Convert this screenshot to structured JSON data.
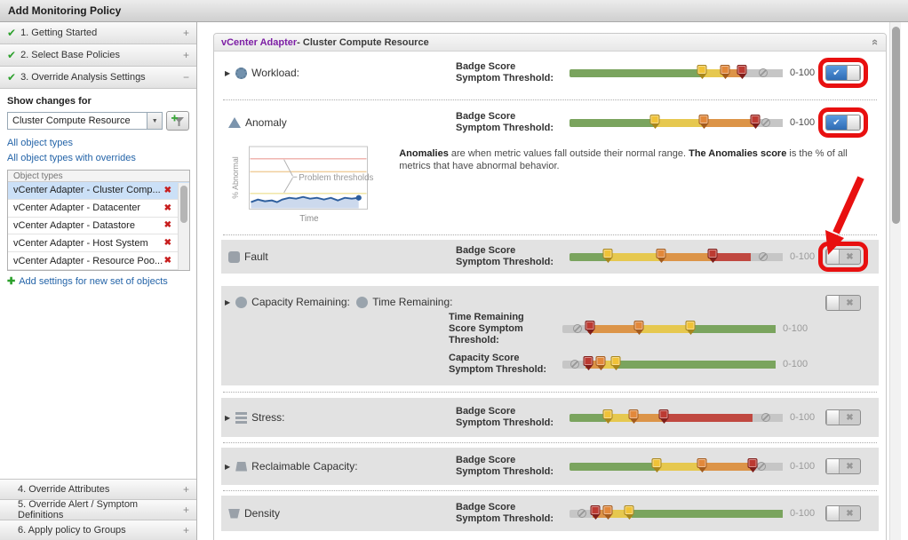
{
  "window": {
    "title": "Add Monitoring Policy"
  },
  "glyphs": {
    "check": "✔",
    "x": "✖",
    "delete_x": "✖",
    "plus": "+",
    "minus": "−",
    "expander": "▶",
    "dropdown_arrow": "▼",
    "add_plus": "✚",
    "collapse": "«"
  },
  "colors": {
    "accent_blue": "#3f7fc6",
    "link_blue": "#2464a8",
    "title_purple": "#7d1fa5",
    "annotation_red": "#e81010",
    "selected_row": "#cbe0f7",
    "disabled_band": "#e2e2e2",
    "green": "#7aa45e",
    "yellow": "#e6c84f",
    "orange": "#dc9448",
    "red": "#c04840",
    "gray": "#c6c6c6",
    "yellow_marker": "#f0c237",
    "yellow_marker_border": "#a8861c",
    "orange_marker": "#e2883b",
    "orange_marker_border": "#a35b1d",
    "red_marker": "#bc3a32",
    "red_marker_border": "#7e1d1a"
  },
  "sidebar": {
    "steps_top": [
      {
        "label": "1. Getting Started",
        "toggle": "+"
      },
      {
        "label": "2. Select Base Policies",
        "toggle": "+"
      },
      {
        "label": "3. Override Analysis Settings",
        "toggle": "−"
      }
    ],
    "show_changes_for_label": "Show changes for",
    "object_type_dropdown": {
      "value": "Cluster Compute Resource"
    },
    "links": {
      "all_object_types": "All object types",
      "all_with_overrides": "All object types with overrides"
    },
    "object_types_table": {
      "header": "Object types",
      "rows": [
        {
          "label": "vCenter Adapter - Cluster Comp...",
          "selected": true
        },
        {
          "label": "vCenter Adapter - Datacenter",
          "selected": false
        },
        {
          "label": "vCenter Adapter - Datastore",
          "selected": false
        },
        {
          "label": "vCenter Adapter - Host System",
          "selected": false
        },
        {
          "label": "vCenter Adapter - Resource Poo...",
          "selected": false
        }
      ]
    },
    "add_settings_link": "Add settings for new set of objects",
    "steps_bottom": [
      {
        "label": "4. Override Attributes",
        "toggle": "+"
      },
      {
        "label": "5. Override Alert / Symptom Definitions",
        "toggle": "+"
      },
      {
        "label": "6. Apply policy to Groups",
        "toggle": "+"
      }
    ]
  },
  "main": {
    "panel_title": {
      "adapter": "vCenter Adapter",
      "rest": " - Cluster Compute Resource"
    },
    "range_label": "0-100",
    "labels": {
      "badge_score": "Badge Score Symptom Threshold:",
      "time_remaining_score": "Time Remaining Score Symptom Threshold:",
      "capacity_score": "Capacity Score Symptom Threshold:"
    },
    "rows": {
      "workload": {
        "name": "Workload:"
      },
      "anomaly": {
        "name": "Anomaly"
      },
      "fault": {
        "name": "Fault"
      },
      "capacity_remaining": {
        "name": "Capacity Remaining:"
      },
      "time_remaining": {
        "name": "Time Remaining:"
      },
      "stress": {
        "name": "Stress:"
      },
      "reclaimable": {
        "name": "Reclaimable Capacity:"
      },
      "density": {
        "name": "Density"
      }
    },
    "anomaly_info": {
      "ylabel": "% Abnormal",
      "xlabel": "Time",
      "annotation": "Problem thresholds",
      "text_bold_1": "Anomalies",
      "text_1": " are when metric values fall outside their normal range. ",
      "text_bold_2": "The Anomalies score",
      "text_2": " is the % of all metrics that have abnormal behavior."
    }
  },
  "toggles": {
    "workload": "on",
    "anomaly": "on",
    "fault": "off",
    "capacity": "off",
    "stress": "off",
    "reclaimable": "off",
    "density": "off"
  },
  "sliders": {
    "workload": {
      "segments": [
        {
          "color": "green",
          "to": 62
        },
        {
          "color": "yellow",
          "to": 73
        },
        {
          "color": "orange",
          "to": 81
        },
        {
          "color": "gray",
          "to": 100
        }
      ],
      "markers": [
        {
          "color": "yellow",
          "pos": 62
        },
        {
          "color": "orange",
          "pos": 73
        },
        {
          "color": "red",
          "pos": 81
        }
      ],
      "disabled_at": 91
    },
    "anomaly": {
      "segments": [
        {
          "color": "green",
          "to": 40
        },
        {
          "color": "yellow",
          "to": 63
        },
        {
          "color": "orange",
          "to": 87
        },
        {
          "color": "gray",
          "to": 100
        }
      ],
      "markers": [
        {
          "color": "yellow",
          "pos": 40
        },
        {
          "color": "orange",
          "pos": 63
        },
        {
          "color": "red",
          "pos": 87
        }
      ],
      "disabled_at": 92
    },
    "fault": {
      "segments": [
        {
          "color": "green",
          "to": 18
        },
        {
          "color": "yellow",
          "to": 43
        },
        {
          "color": "orange",
          "to": 67
        },
        {
          "color": "red",
          "to": 85
        },
        {
          "color": "gray",
          "to": 100
        }
      ],
      "markers": [
        {
          "color": "yellow",
          "pos": 18
        },
        {
          "color": "orange",
          "pos": 43
        },
        {
          "color": "red",
          "pos": 67
        }
      ],
      "disabled_at": 91
    },
    "time_remaining": {
      "segments": [
        {
          "color": "gray",
          "to": 12
        },
        {
          "color": "orange",
          "to": 36
        },
        {
          "color": "yellow",
          "to": 60
        },
        {
          "color": "green",
          "to": 100
        }
      ],
      "markers": [
        {
          "color": "red",
          "pos": 13
        },
        {
          "color": "orange",
          "pos": 36
        },
        {
          "color": "yellow",
          "pos": 60
        }
      ],
      "disabled_at": 7
    },
    "capacity_score": {
      "segments": [
        {
          "color": "gray",
          "to": 11
        },
        {
          "color": "orange",
          "to": 19
        },
        {
          "color": "yellow",
          "to": 26
        },
        {
          "color": "green",
          "to": 100
        }
      ],
      "markers": [
        {
          "color": "red",
          "pos": 12
        },
        {
          "color": "orange",
          "pos": 18
        },
        {
          "color": "yellow",
          "pos": 25
        }
      ],
      "disabled_at": 6
    },
    "stress": {
      "segments": [
        {
          "color": "green",
          "to": 17
        },
        {
          "color": "yellow",
          "to": 30
        },
        {
          "color": "orange",
          "to": 44
        },
        {
          "color": "red",
          "to": 86
        },
        {
          "color": "gray",
          "to": 100
        }
      ],
      "markers": [
        {
          "color": "yellow",
          "pos": 18
        },
        {
          "color": "orange",
          "pos": 30
        },
        {
          "color": "red",
          "pos": 44
        }
      ],
      "disabled_at": 92
    },
    "reclaimable": {
      "segments": [
        {
          "color": "green",
          "to": 41
        },
        {
          "color": "yellow",
          "to": 62
        },
        {
          "color": "orange",
          "to": 86
        },
        {
          "color": "gray",
          "to": 100
        }
      ],
      "markers": [
        {
          "color": "yellow",
          "pos": 41
        },
        {
          "color": "orange",
          "pos": 62
        },
        {
          "color": "red",
          "pos": 86
        }
      ],
      "disabled_at": 90
    },
    "density": {
      "segments": [
        {
          "color": "gray",
          "to": 11
        },
        {
          "color": "orange",
          "to": 19
        },
        {
          "color": "yellow",
          "to": 29
        },
        {
          "color": "green",
          "to": 100
        }
      ],
      "markers": [
        {
          "color": "red",
          "pos": 12
        },
        {
          "color": "orange",
          "pos": 18
        },
        {
          "color": "yellow",
          "pos": 28
        }
      ],
      "disabled_at": 6
    }
  }
}
